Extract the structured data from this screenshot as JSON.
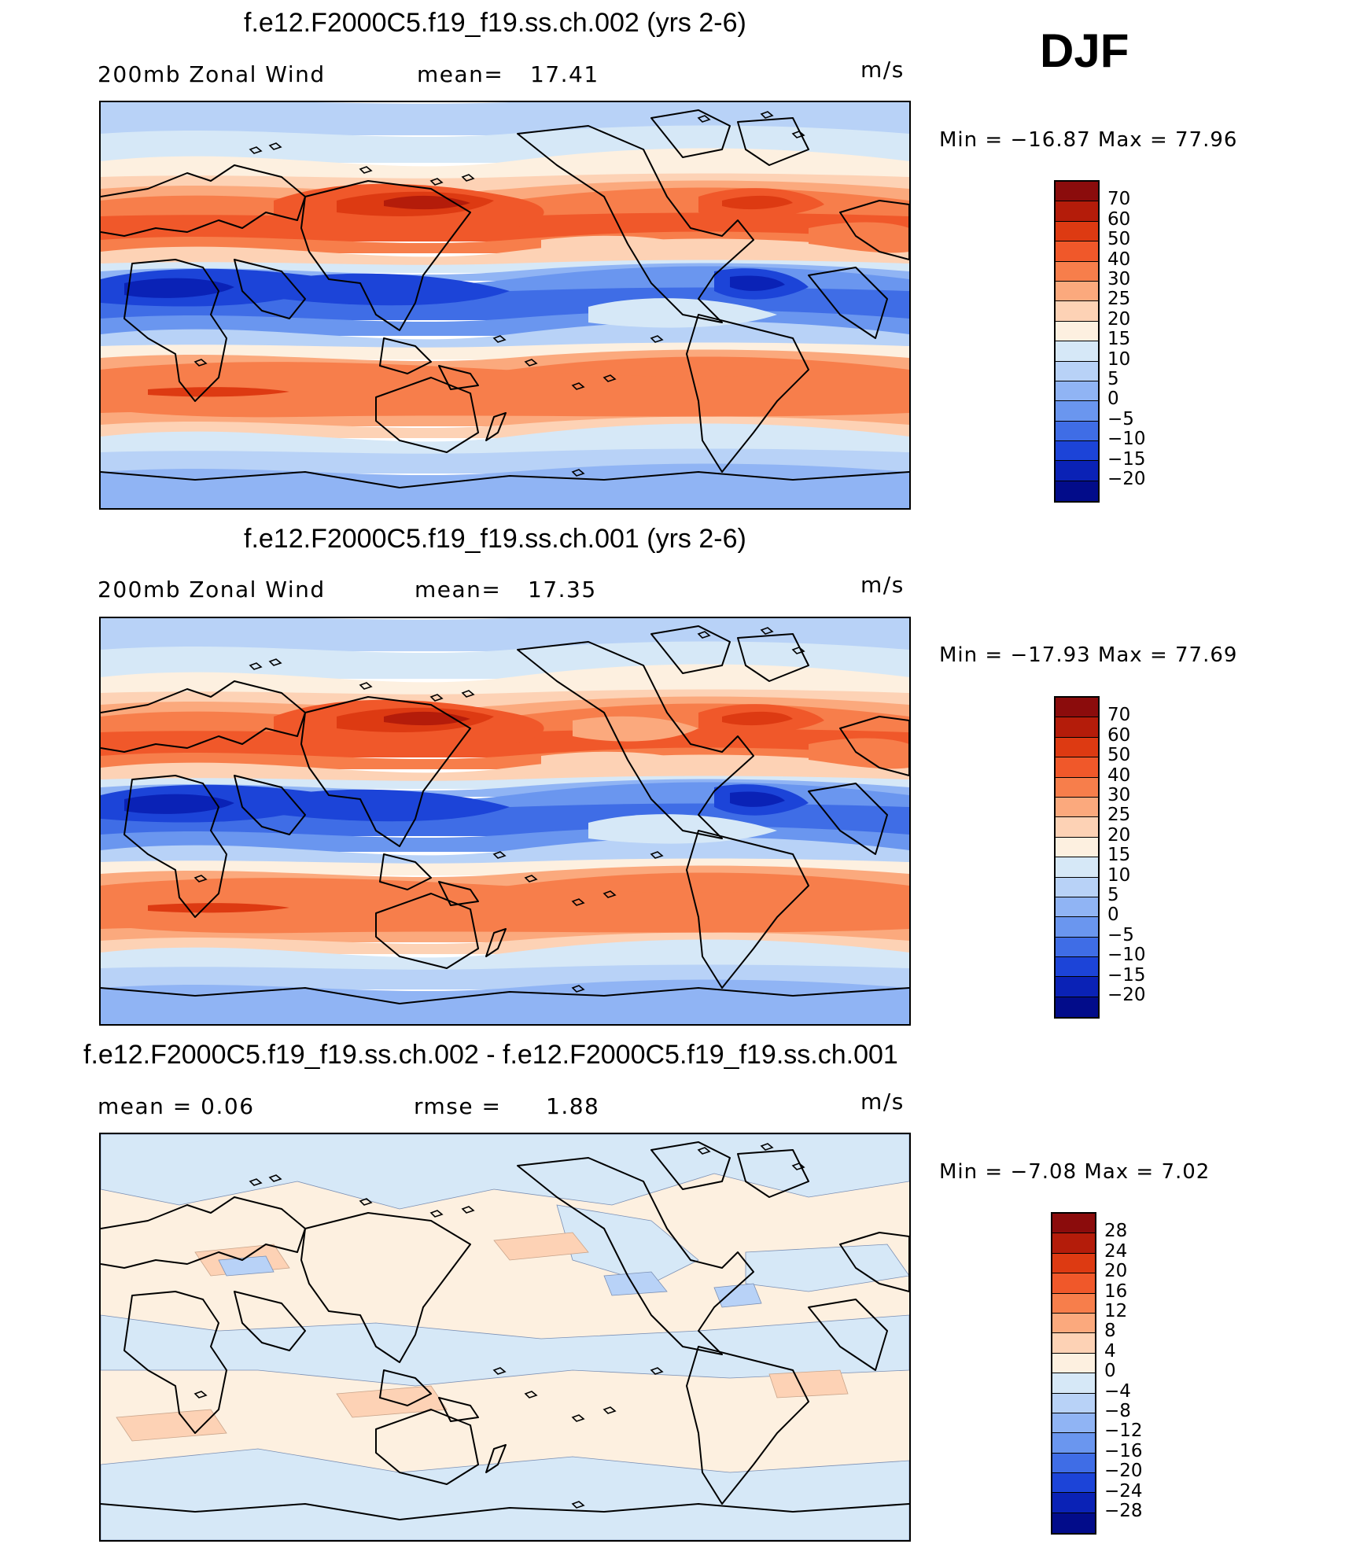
{
  "season": "DJF",
  "units": "m/s",
  "panels": [
    {
      "title": "f.e12.F2000C5.f19_f19.ss.ch.002 (yrs 2-6)",
      "left_label": "200mb Zonal Wind",
      "stat_label": "mean=",
      "stat_value": "17.41",
      "units": "m/s",
      "min_max": "Min = −16.87 Max =   77.96",
      "colorbar": {
        "labels": [
          "70",
          "60",
          "50",
          "40",
          "30",
          "25",
          "20",
          "15",
          "10",
          "5",
          "0",
          "−5",
          "−10",
          "−15",
          "−20"
        ],
        "colors": [
          "#8b0c0c",
          "#b41c0a",
          "#dd3a12",
          "#f0582a",
          "#f77e4b",
          "#fba97d",
          "#fdd2b5",
          "#fdf0e0",
          "#d6e8f7",
          "#b8d2f7",
          "#90b4f4",
          "#6a96ef",
          "#3f6de6",
          "#1c44d8",
          "#0a22b6",
          "#020c8a"
        ]
      },
      "field": "full"
    },
    {
      "title": "f.e12.F2000C5.f19_f19.ss.ch.001 (yrs 2-6)",
      "left_label": "200mb Zonal Wind",
      "stat_label": "mean=",
      "stat_value": "17.35",
      "units": "m/s",
      "min_max": "Min = −17.93 Max =   77.69",
      "colorbar": {
        "labels": [
          "70",
          "60",
          "50",
          "40",
          "30",
          "25",
          "20",
          "15",
          "10",
          "5",
          "0",
          "−5",
          "−10",
          "−15",
          "−20"
        ],
        "colors": [
          "#8b0c0c",
          "#b41c0a",
          "#dd3a12",
          "#f0582a",
          "#f77e4b",
          "#fba97d",
          "#fdd2b5",
          "#fdf0e0",
          "#d6e8f7",
          "#b8d2f7",
          "#90b4f4",
          "#6a96ef",
          "#3f6de6",
          "#1c44d8",
          "#0a22b6",
          "#020c8a"
        ]
      },
      "field": "full"
    },
    {
      "title": "f.e12.F2000C5.f19_f19.ss.ch.002 - f.e12.F2000C5.f19_f19.ss.ch.001",
      "left_label": "mean =     0.06",
      "stat_label": "rmse =",
      "stat_value": "1.88",
      "units": "m/s",
      "min_max": "Min =   −7.08 Max =    7.02",
      "colorbar": {
        "labels": [
          "28",
          "24",
          "20",
          "16",
          "12",
          "8",
          "4",
          "0",
          "−4",
          "−8",
          "−12",
          "−16",
          "−20",
          "−24",
          "−28"
        ],
        "colors": [
          "#8b0c0c",
          "#b41c0a",
          "#dd3a12",
          "#f0582a",
          "#f77e4b",
          "#fba97d",
          "#fdd2b5",
          "#fdf0e0",
          "#d6e8f7",
          "#b8d2f7",
          "#90b4f4",
          "#6a96ef",
          "#3f6de6",
          "#1c44d8",
          "#0a22b6",
          "#020c8a"
        ]
      },
      "field": "diff"
    }
  ]
}
